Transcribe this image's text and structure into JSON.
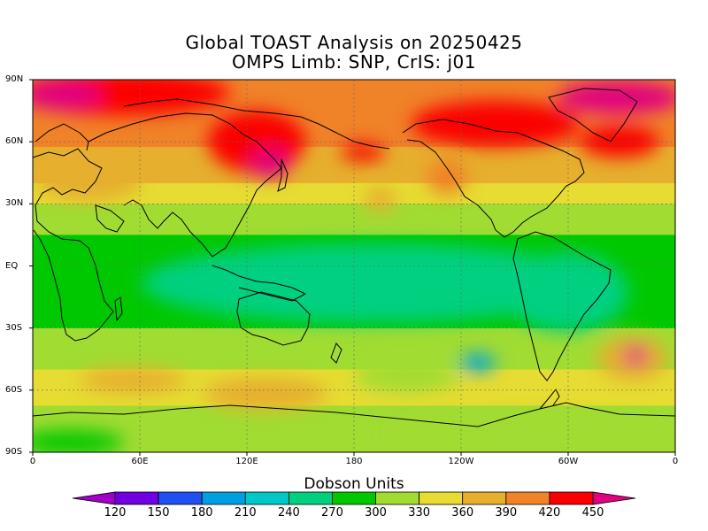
{
  "title_line1": "Global TOAST Analysis on 20250425",
  "title_line2": "OMPS Limb: SNP,  CrIS: j01",
  "colorbar_title": "Dobson Units",
  "lat_labels": [
    "90N",
    "60N",
    "30N",
    "EQ",
    "30S",
    "60S",
    "90S"
  ],
  "lon_labels": [
    "0",
    "60E",
    "120E",
    "180",
    "120W",
    "60W",
    "0"
  ],
  "colorbar": {
    "tick_labels": [
      "120",
      "150",
      "180",
      "210",
      "240",
      "270",
      "300",
      "330",
      "360",
      "390",
      "420",
      "450"
    ],
    "colors": [
      "#a000c8",
      "#7000e0",
      "#2050f0",
      "#00a0e0",
      "#00c8c8",
      "#00d080",
      "#00c800",
      "#a0dc32",
      "#e6dc32",
      "#e6af2d",
      "#f08228",
      "#fa0000",
      "#e00080"
    ]
  },
  "chart_data": {
    "type": "heatmap",
    "title": "Global TOAST Analysis on 20250425",
    "subtitle": "OMPS Limb: SNP,  CrIS: j01",
    "colorbar_label": "Dobson Units",
    "levels": [
      120,
      150,
      180,
      210,
      240,
      270,
      300,
      330,
      360,
      390,
      420,
      450
    ],
    "xlim": [
      0,
      360
    ],
    "ylim": [
      -90,
      90
    ],
    "x_ticks": [
      "0",
      "60E",
      "120E",
      "180",
      "120W",
      "60W",
      "0"
    ],
    "y_ticks": [
      "90N",
      "60N",
      "30N",
      "EQ",
      "30S",
      "60S",
      "90S"
    ],
    "grid": true,
    "latitude_profile": [
      {
        "lat": 90,
        "du": 420
      },
      {
        "lat": 75,
        "du": 410
      },
      {
        "lat": 60,
        "du": 395
      },
      {
        "lat": 45,
        "du": 370
      },
      {
        "lat": 30,
        "du": 330
      },
      {
        "lat": 15,
        "du": 300
      },
      {
        "lat": 0,
        "du": 280
      },
      {
        "lat": -15,
        "du": 285
      },
      {
        "lat": -30,
        "du": 300
      },
      {
        "lat": -45,
        "du": 320
      },
      {
        "lat": -60,
        "du": 350
      },
      {
        "lat": -75,
        "du": 315
      },
      {
        "lat": -90,
        "du": 300
      }
    ]
  }
}
